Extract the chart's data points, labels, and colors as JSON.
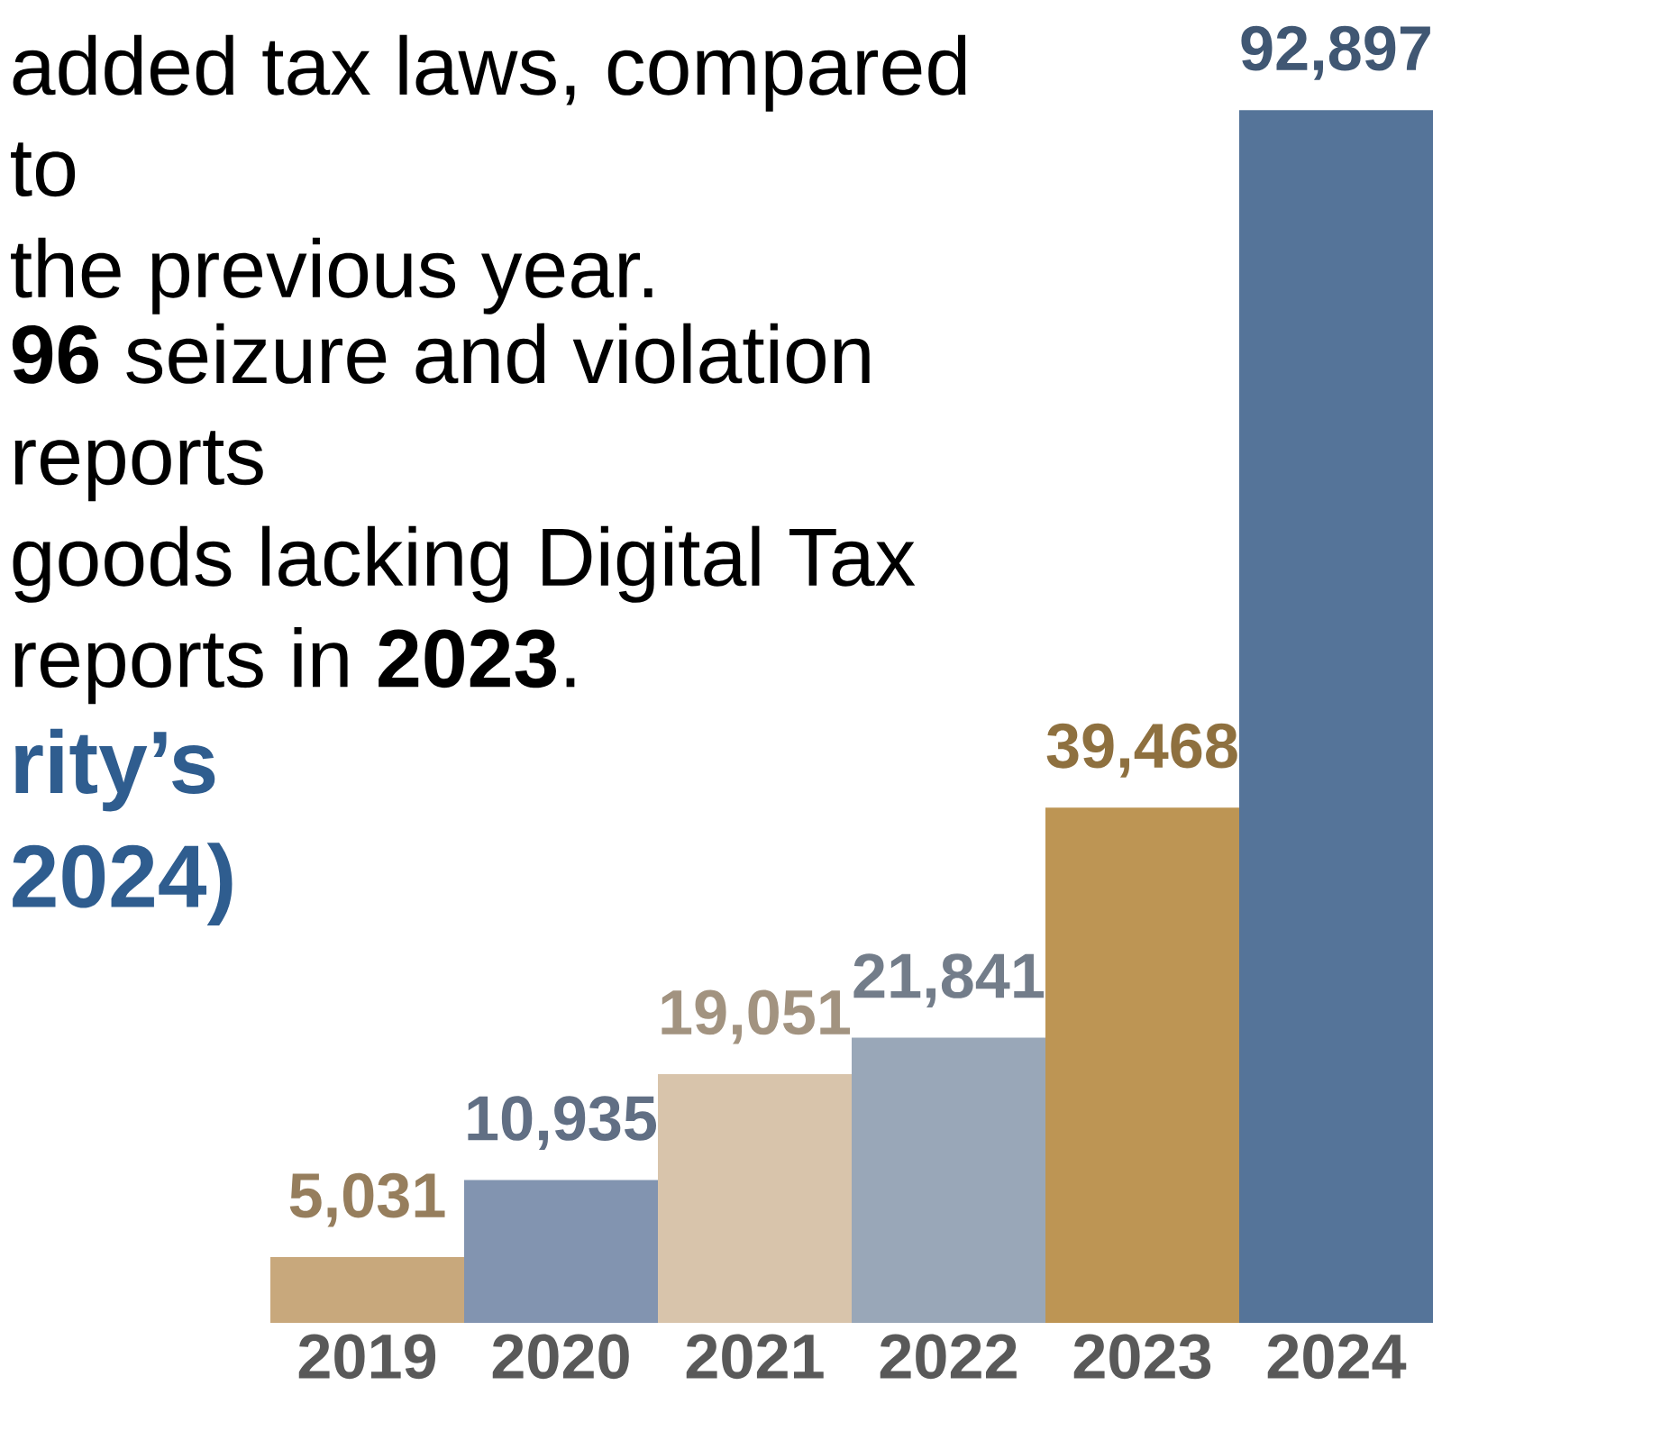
{
  "chart_data": {
    "type": "bar",
    "title": "rity’s\n2024)",
    "categories": [
      "2019",
      "2020",
      "2021",
      "2022",
      "2023",
      "2024"
    ],
    "values": [
      5031,
      10935,
      19051,
      21841,
      39468,
      92897
    ],
    "value_labels": [
      "5,031",
      "10,935",
      "19,051",
      "21,841",
      "39,468",
      "92,897"
    ],
    "colors": [
      "#c8a87c",
      "#8294b0",
      "#d8c4ab",
      "#99a7b8",
      "#bd9554",
      "#557499"
    ],
    "annotations": [
      "added tax laws, compared to\nthe previous year.",
      "**96** seizure and violation reports\ngoods lacking Digital Tax\nreports in **2023**."
    ]
  }
}
